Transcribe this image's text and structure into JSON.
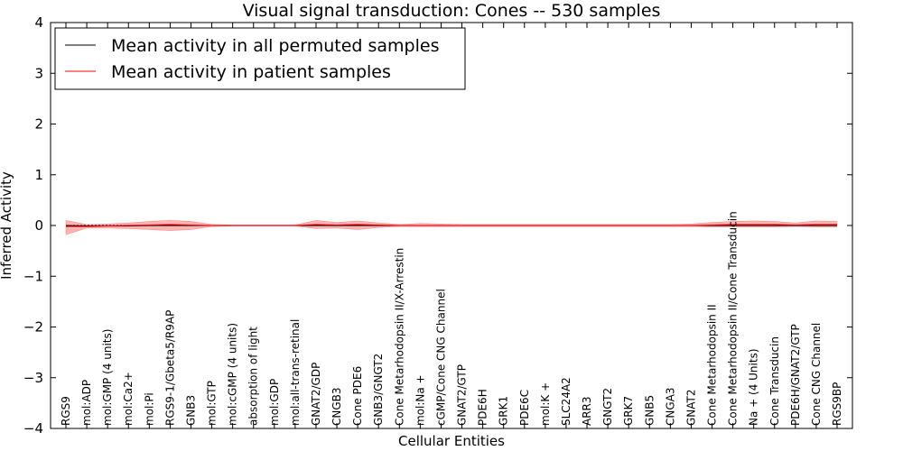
{
  "chart_data": {
    "type": "line",
    "title": "Visual signal transduction: Cones -- 530 samples",
    "xlabel": "Cellular Entities",
    "ylabel": "Inferred Activity",
    "ylim": [
      -4,
      4
    ],
    "yticks": [
      -4,
      -3,
      -2,
      -1,
      0,
      1,
      2,
      3,
      4
    ],
    "ytick_labels": [
      "−4",
      "−3",
      "−2",
      "−1",
      "0",
      "1",
      "2",
      "3",
      "4"
    ],
    "grid": false,
    "legend_position": "top-left",
    "categories": [
      "RGS9",
      "mol:ADP",
      "mol:GMP (4 units)",
      "mol:Ca2+",
      "mol:Pi",
      "RGS9-1/Gbeta5/R9AP",
      "GNB3",
      "mol:GTP",
      "mol:cGMP (4 units)",
      "absorption of light",
      "mol:GDP",
      "mol:all-trans-retinal",
      "GNAT2/GDP",
      "CNGB3",
      "Cone PDE6",
      "GNB3/GNGT2",
      "Cone Metarhodopsin II/X-Arrestin",
      "mol:Na +",
      "cGMP/Cone CNG Channel",
      "GNAT2/GTP",
      "PDE6H",
      "GRK1",
      "PDE6C",
      "mol:K +",
      "SLC24A2",
      "ARR3",
      "GNGT2",
      "GRK7",
      "GNB5",
      "CNGA3",
      "GNAT2",
      "Cone Metarhodopsin II",
      "Cone Metarhodopsin II/Cone Transducin",
      "Na + (4 Units)",
      "Cone Transducin",
      "PDE6H/GNAT2/GTP",
      "Cone CNG Channel",
      "RGS9BP"
    ],
    "series": [
      {
        "name": "Mean activity in all permuted samples",
        "color": "#000000",
        "values": [
          0.0,
          -0.01,
          -0.01,
          -0.01,
          0.0,
          0.0,
          0.0,
          0.0,
          0.0,
          0.0,
          0.0,
          0.0,
          0.0,
          0.0,
          0.0,
          0.0,
          0.0,
          0.0,
          0.0,
          0.0,
          0.0,
          0.0,
          0.0,
          0.0,
          0.0,
          0.0,
          0.0,
          0.0,
          0.0,
          0.0,
          0.0,
          0.0,
          0.0,
          0.0,
          0.0,
          0.0,
          0.0,
          0.0
        ]
      },
      {
        "name": "Mean activity in patient samples",
        "color": "#ff0000",
        "band_color": "#ff8080",
        "values": [
          -0.02,
          -0.02,
          -0.01,
          0.0,
          0.01,
          0.02,
          0.01,
          0.0,
          0.0,
          0.0,
          0.0,
          0.0,
          0.02,
          0.01,
          0.02,
          0.01,
          0.0,
          0.0,
          0.0,
          0.0,
          0.0,
          0.0,
          0.0,
          0.0,
          0.0,
          0.0,
          0.0,
          0.0,
          0.0,
          0.0,
          0.0,
          0.01,
          0.02,
          0.02,
          0.02,
          0.01,
          0.02,
          0.02
        ],
        "upper": [
          0.1,
          0.02,
          0.03,
          0.05,
          0.08,
          0.1,
          0.08,
          0.02,
          0.01,
          0.01,
          0.01,
          0.01,
          0.1,
          0.06,
          0.09,
          0.05,
          0.02,
          0.04,
          0.03,
          0.02,
          0.02,
          0.02,
          0.02,
          0.02,
          0.02,
          0.02,
          0.02,
          0.02,
          0.02,
          0.02,
          0.03,
          0.06,
          0.08,
          0.09,
          0.08,
          0.05,
          0.09,
          0.08
        ],
        "lower": [
          -0.18,
          -0.05,
          -0.05,
          -0.06,
          -0.08,
          -0.1,
          -0.08,
          -0.02,
          -0.01,
          -0.01,
          -0.01,
          -0.01,
          -0.06,
          -0.05,
          -0.08,
          -0.04,
          -0.02,
          -0.02,
          -0.02,
          -0.02,
          -0.02,
          -0.02,
          -0.02,
          -0.02,
          -0.02,
          -0.02,
          -0.02,
          -0.02,
          -0.02,
          -0.02,
          -0.02,
          -0.03,
          -0.03,
          -0.03,
          -0.03,
          -0.02,
          -0.03,
          -0.03
        ]
      }
    ],
    "reference_band": {
      "color": "#b0b8ff",
      "upper": 0.015,
      "lower": -0.015
    }
  }
}
